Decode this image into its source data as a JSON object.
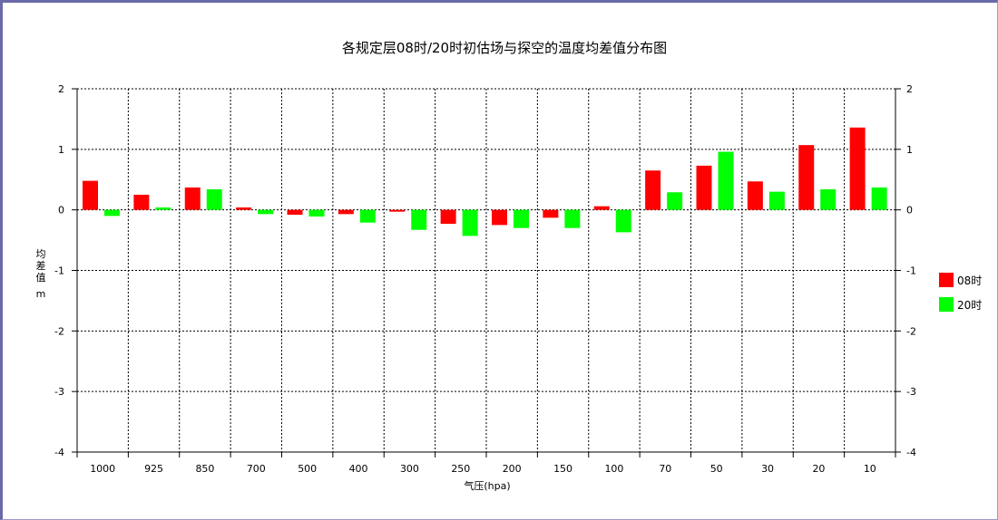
{
  "chart_data": {
    "type": "bar",
    "title": "各规定层08时/20时初估场与探空的温度均差值分布图",
    "xlabel": "气压(hpa)",
    "ylabel_main": "均差值",
    "ylabel_unit": "m",
    "categories": [
      "1000",
      "925",
      "850",
      "700",
      "500",
      "400",
      "300",
      "250",
      "200",
      "150",
      "100",
      "70",
      "50",
      "30",
      "20",
      "10"
    ],
    "ylim": [
      -4,
      2
    ],
    "yticks": [
      2,
      1,
      0,
      -1,
      -2,
      -3,
      -4
    ],
    "grid": true,
    "legend_position": "right",
    "series": [
      {
        "name": "08时",
        "color": "#ff0000",
        "values": [
          0.48,
          0.25,
          0.37,
          0.04,
          -0.08,
          -0.07,
          -0.03,
          -0.23,
          -0.25,
          -0.13,
          0.06,
          0.65,
          0.73,
          0.47,
          1.07,
          1.36
        ]
      },
      {
        "name": "20时",
        "color": "#00ff00",
        "values": [
          -0.1,
          0.04,
          0.34,
          -0.07,
          -0.11,
          -0.21,
          -0.33,
          -0.43,
          -0.3,
          -0.3,
          -0.37,
          0.29,
          0.96,
          0.3,
          0.34,
          0.37
        ]
      }
    ]
  }
}
